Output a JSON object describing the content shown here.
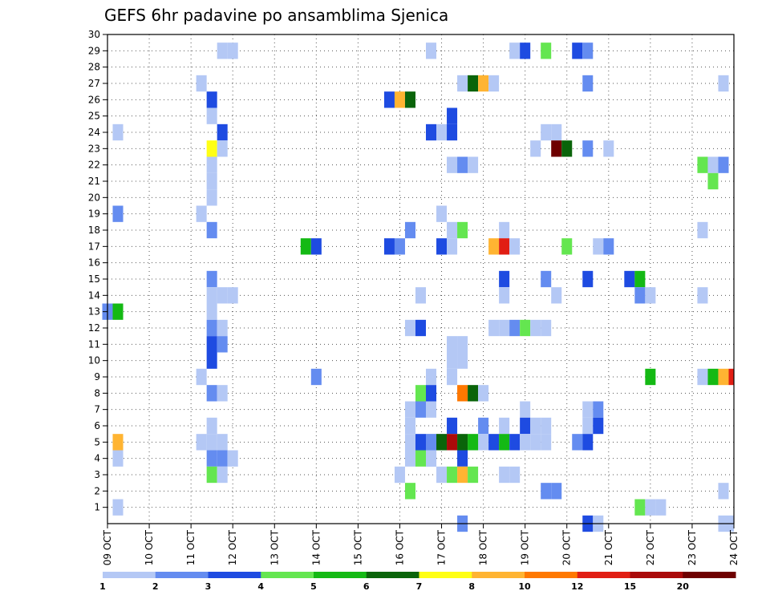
{
  "chart_data": {
    "type": "heatmap",
    "title": "GEFS 6hr padavine po ansamblima Sjenica",
    "y_ticks": [
      "1",
      "2",
      "3",
      "4",
      "5",
      "6",
      "7",
      "8",
      "9",
      "10",
      "11",
      "12",
      "13",
      "14",
      "15",
      "16",
      "17",
      "18",
      "19",
      "20",
      "21",
      "22",
      "23",
      "24",
      "25",
      "26",
      "27",
      "28",
      "29",
      "30"
    ],
    "y_range": [
      0,
      30
    ],
    "x_ticks": [
      "09 OCT",
      "10 OCT",
      "11 OCT",
      "12 OCT",
      "13 OCT",
      "14 OCT",
      "15 OCT",
      "16 OCT",
      "17 OCT",
      "18 OCT",
      "19 OCT",
      "20 OCT",
      "21 OCT",
      "22 OCT",
      "23 OCT",
      "24 OCT"
    ],
    "x_range_days": [
      0,
      15
    ],
    "grid": "dotted",
    "legend": {
      "placement": "bottom",
      "labels": [
        "1",
        "2",
        "3",
        "4",
        "5",
        "6",
        "7",
        "8",
        "10",
        "12",
        "15",
        "20"
      ],
      "colors": [
        "#b4c8f5",
        "#648cf0",
        "#1e4be1",
        "#64e650",
        "#14b914",
        "#0a640a",
        "#ffff14",
        "#ffb432",
        "#ff7800",
        "#e11e14",
        "#aa0a0a",
        "#6e0000"
      ]
    },
    "cells": [
      [
        2.75,
        29,
        0
      ],
      [
        3.0,
        29,
        0
      ],
      [
        7.75,
        29,
        0
      ],
      [
        9.75,
        29,
        0
      ],
      [
        10.0,
        29,
        2
      ],
      [
        10.5,
        29,
        3
      ],
      [
        11.25,
        29,
        2
      ],
      [
        11.5,
        29,
        1
      ],
      [
        2.25,
        27,
        0
      ],
      [
        8.5,
        27,
        0
      ],
      [
        8.75,
        27,
        5
      ],
      [
        9.0,
        27,
        7
      ],
      [
        9.25,
        27,
        0
      ],
      [
        11.5,
        27,
        1
      ],
      [
        14.75,
        27,
        0
      ],
      [
        2.5,
        26,
        2
      ],
      [
        6.75,
        26,
        2
      ],
      [
        7.0,
        26,
        7
      ],
      [
        7.25,
        26,
        5
      ],
      [
        2.5,
        25,
        0
      ],
      [
        8.25,
        25,
        2
      ],
      [
        0.25,
        24,
        0
      ],
      [
        2.75,
        24,
        2
      ],
      [
        7.75,
        24,
        2
      ],
      [
        8.0,
        24,
        0
      ],
      [
        8.25,
        24,
        2
      ],
      [
        10.5,
        24,
        0
      ],
      [
        10.75,
        24,
        0
      ],
      [
        2.5,
        23,
        6
      ],
      [
        2.75,
        23,
        0
      ],
      [
        10.25,
        23,
        0
      ],
      [
        10.75,
        23,
        11
      ],
      [
        11.0,
        23,
        5
      ],
      [
        11.5,
        23,
        1
      ],
      [
        12.0,
        23,
        0
      ],
      [
        2.5,
        22,
        0
      ],
      [
        8.25,
        22,
        0
      ],
      [
        8.5,
        22,
        1
      ],
      [
        8.75,
        22,
        0
      ],
      [
        14.25,
        22,
        3
      ],
      [
        14.5,
        22,
        0
      ],
      [
        14.75,
        22,
        1
      ],
      [
        2.5,
        21,
        0
      ],
      [
        14.5,
        21,
        3
      ],
      [
        2.5,
        20,
        0
      ],
      [
        0.25,
        19,
        1
      ],
      [
        2.25,
        19,
        0
      ],
      [
        8.0,
        19,
        0
      ],
      [
        2.5,
        18,
        1
      ],
      [
        7.25,
        18,
        1
      ],
      [
        8.25,
        18,
        0
      ],
      [
        8.5,
        18,
        3
      ],
      [
        9.5,
        18,
        0
      ],
      [
        14.25,
        18,
        0
      ],
      [
        4.75,
        17,
        4
      ],
      [
        5.0,
        17,
        2
      ],
      [
        6.75,
        17,
        2
      ],
      [
        7.0,
        17,
        1
      ],
      [
        8.0,
        17,
        2
      ],
      [
        8.25,
        17,
        0
      ],
      [
        9.25,
        17,
        7
      ],
      [
        9.5,
        17,
        9
      ],
      [
        9.75,
        17,
        0
      ],
      [
        11.0,
        17,
        3
      ],
      [
        11.75,
        17,
        0
      ],
      [
        12.0,
        17,
        1
      ],
      [
        2.5,
        15,
        1
      ],
      [
        9.5,
        15,
        2
      ],
      [
        10.5,
        15,
        1
      ],
      [
        11.5,
        15,
        2
      ],
      [
        12.5,
        15,
        2
      ],
      [
        12.75,
        15,
        4
      ],
      [
        2.5,
        14,
        0
      ],
      [
        2.75,
        14,
        0
      ],
      [
        3.0,
        14,
        0
      ],
      [
        7.5,
        14,
        0
      ],
      [
        9.5,
        14,
        0
      ],
      [
        10.75,
        14,
        0
      ],
      [
        12.75,
        14,
        1
      ],
      [
        13.0,
        14,
        0
      ],
      [
        14.25,
        14,
        0
      ],
      [
        0.0,
        13,
        1
      ],
      [
        0.25,
        13,
        4
      ],
      [
        2.5,
        13,
        0
      ],
      [
        2.5,
        12,
        1
      ],
      [
        2.75,
        12,
        0
      ],
      [
        7.25,
        12,
        0
      ],
      [
        7.5,
        12,
        2
      ],
      [
        9.25,
        12,
        0
      ],
      [
        9.5,
        12,
        0
      ],
      [
        9.75,
        12,
        1
      ],
      [
        10.0,
        12,
        3
      ],
      [
        10.25,
        12,
        0
      ],
      [
        10.5,
        12,
        0
      ],
      [
        2.5,
        11,
        2
      ],
      [
        2.75,
        11,
        1
      ],
      [
        8.25,
        11,
        0
      ],
      [
        8.5,
        11,
        0
      ],
      [
        2.5,
        10,
        2
      ],
      [
        8.25,
        10,
        0
      ],
      [
        8.5,
        10,
        0
      ],
      [
        2.25,
        9,
        0
      ],
      [
        5.0,
        9,
        1
      ],
      [
        7.75,
        9,
        0
      ],
      [
        8.25,
        9,
        0
      ],
      [
        13.0,
        9,
        4
      ],
      [
        14.25,
        9,
        0
      ],
      [
        14.5,
        9,
        4
      ],
      [
        14.75,
        9,
        7
      ],
      [
        15.0,
        9,
        9
      ],
      [
        2.5,
        8,
        1
      ],
      [
        2.75,
        8,
        0
      ],
      [
        7.5,
        8,
        3
      ],
      [
        7.75,
        8,
        2
      ],
      [
        8.5,
        8,
        8
      ],
      [
        8.75,
        8,
        5
      ],
      [
        9.0,
        8,
        0
      ],
      [
        7.25,
        7,
        0
      ],
      [
        7.5,
        7,
        1
      ],
      [
        7.75,
        7,
        0
      ],
      [
        10.0,
        7,
        0
      ],
      [
        11.5,
        7,
        0
      ],
      [
        11.75,
        7,
        1
      ],
      [
        2.5,
        6,
        0
      ],
      [
        7.25,
        6,
        0
      ],
      [
        8.25,
        6,
        2
      ],
      [
        9.0,
        6,
        1
      ],
      [
        9.5,
        6,
        0
      ],
      [
        10.0,
        6,
        2
      ],
      [
        10.25,
        6,
        0
      ],
      [
        10.5,
        6,
        0
      ],
      [
        11.5,
        6,
        0
      ],
      [
        11.75,
        6,
        2
      ],
      [
        7.25,
        5,
        0
      ],
      [
        7.75,
        5,
        0
      ],
      [
        8.0,
        5,
        0
      ],
      [
        8.25,
        5,
        0
      ],
      [
        9.0,
        5,
        0
      ],
      [
        9.25,
        5,
        2
      ],
      [
        9.5,
        5,
        4
      ],
      [
        9.75,
        5,
        2
      ],
      [
        10.0,
        5,
        0
      ],
      [
        10.25,
        5,
        0
      ],
      [
        10.5,
        5,
        0
      ],
      [
        11.25,
        5,
        1
      ],
      [
        11.5,
        5,
        2
      ],
      [
        7.75,
        4,
        0
      ],
      [
        7.75,
        4,
        0
      ],
      [
        8.5,
        4,
        2
      ],
      [
        0.25,
        5,
        7
      ],
      [
        2.25,
        5,
        0
      ],
      [
        2.5,
        5,
        0
      ],
      [
        2.75,
        5,
        0
      ],
      [
        7.5,
        5,
        2
      ],
      [
        7.75,
        5,
        1
      ],
      [
        8.0,
        5,
        5
      ],
      [
        8.25,
        5,
        10
      ],
      [
        8.5,
        5,
        5
      ],
      [
        8.75,
        5,
        4
      ],
      [
        0.25,
        4,
        0
      ],
      [
        2.5,
        4,
        1
      ],
      [
        2.75,
        4,
        1
      ],
      [
        3.0,
        4,
        0
      ],
      [
        7.25,
        4,
        0
      ],
      [
        7.5,
        4,
        3
      ],
      [
        7.75,
        4,
        0
      ],
      [
        2.5,
        3,
        3
      ],
      [
        2.75,
        3,
        0
      ],
      [
        7.0,
        3,
        0
      ],
      [
        8.0,
        3,
        0
      ],
      [
        8.25,
        3,
        3
      ],
      [
        8.5,
        3,
        7
      ],
      [
        8.75,
        3,
        3
      ],
      [
        9.5,
        3,
        0
      ],
      [
        9.75,
        3,
        0
      ],
      [
        7.25,
        2,
        3
      ],
      [
        10.5,
        2,
        1
      ],
      [
        10.75,
        2,
        1
      ],
      [
        14.75,
        2,
        0
      ],
      [
        0.25,
        1,
        0
      ],
      [
        12.75,
        1,
        3
      ],
      [
        13.0,
        1,
        0
      ],
      [
        13.25,
        1,
        0
      ],
      [
        8.5,
        0,
        1
      ],
      [
        11.5,
        0,
        2
      ],
      [
        11.75,
        0,
        0
      ],
      [
        14.75,
        0,
        0
      ],
      [
        15.0,
        0,
        0
      ]
    ]
  }
}
